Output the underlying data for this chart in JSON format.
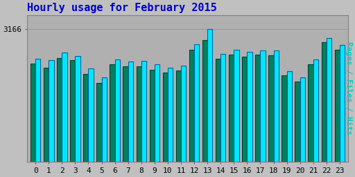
{
  "title": "Hourly usage for February 2015",
  "hours": [
    0,
    1,
    2,
    3,
    4,
    5,
    6,
    7,
    8,
    9,
    10,
    11,
    12,
    13,
    14,
    15,
    16,
    17,
    18,
    19,
    20,
    21,
    22,
    23
  ],
  "pages": [
    2350,
    2250,
    2480,
    2420,
    2100,
    1880,
    2320,
    2280,
    2280,
    2200,
    2120,
    2180,
    2680,
    2900,
    2460,
    2560,
    2500,
    2560,
    2540,
    2060,
    1920,
    2320,
    2860,
    2680
  ],
  "hits": [
    2450,
    2420,
    2600,
    2520,
    2220,
    2020,
    2440,
    2390,
    2400,
    2320,
    2240,
    2300,
    2800,
    3166,
    2580,
    2680,
    2620,
    2660,
    2660,
    2160,
    2020,
    2440,
    2960,
    2780
  ],
  "bar_color_green": "#008060",
  "bar_color_cyan": "#00e8ff",
  "bar_edge_green": "#004030",
  "bar_edge_cyan": "#0060a0",
  "ylabel_color": "#00cccc",
  "title_color": "#0000cc",
  "background_color": "#c0c0c0",
  "plot_bg_color": "#b0b0b0",
  "ylabel": "Pages / Files / Hits",
  "ytick_label": "3166",
  "ylim_min": 0,
  "ylim_max": 3166,
  "ylim_display": 3500,
  "bar_width": 0.38,
  "title_fontsize": 11,
  "axis_fontsize": 8,
  "ylabel_fontsize": 8
}
